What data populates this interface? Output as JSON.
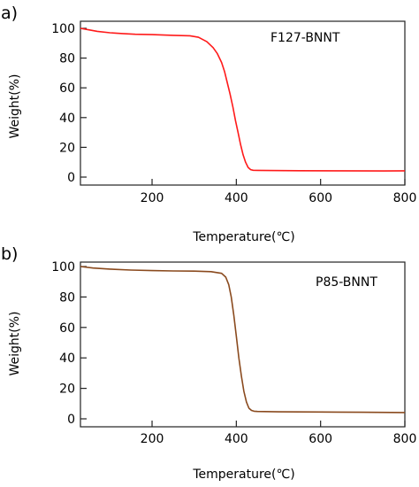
{
  "chart_data": [
    {
      "type": "line",
      "panel_label": "a)",
      "annotation": "F127-BNNT",
      "xlabel": "Temperature(℃)",
      "ylabel": "Weight(%)",
      "xlim": [
        30,
        800
      ],
      "ylim": [
        0,
        100
      ],
      "x_ticks": [
        "200",
        "400",
        "600",
        "800"
      ],
      "y_ticks": [
        "0",
        "20",
        "40",
        "60",
        "80",
        "100"
      ],
      "grid": false,
      "color": "#ff1a1a",
      "series": [
        {
          "x": [
            30,
            50,
            70,
            100,
            130,
            160,
            200,
            250,
            290,
            310,
            330,
            345,
            355,
            365,
            372,
            378,
            385,
            392,
            398,
            404,
            410,
            416,
            422,
            428,
            434,
            440,
            450,
            480,
            550,
            650,
            750,
            800
          ],
          "values": [
            100,
            99,
            98,
            97,
            96.5,
            96,
            95.8,
            95.3,
            95,
            94,
            91,
            87,
            83,
            77,
            71,
            64,
            56,
            47,
            38,
            30,
            22,
            15,
            10,
            6.5,
            5,
            4.6,
            4.5,
            4.4,
            4.3,
            4.2,
            4.1,
            4.2
          ]
        }
      ]
    },
    {
      "type": "line",
      "panel_label": "b)",
      "annotation": "P85-BNNT",
      "xlabel": "Temperature(℃)",
      "ylabel": "Weight(%)",
      "xlim": [
        30,
        800
      ],
      "ylim": [
        0,
        100
      ],
      "x_ticks": [
        "200",
        "400",
        "600",
        "800"
      ],
      "y_ticks": [
        "0",
        "20",
        "40",
        "60",
        "80",
        "100"
      ],
      "grid": false,
      "color": "#8a4a1e",
      "series": [
        {
          "x": [
            30,
            60,
            100,
            150,
            200,
            250,
            300,
            340,
            365,
            375,
            382,
            388,
            394,
            400,
            406,
            412,
            418,
            424,
            430,
            436,
            442,
            450,
            500,
            600,
            700,
            800
          ],
          "values": [
            100,
            99,
            98.3,
            97.7,
            97.3,
            97.1,
            97,
            96.6,
            95.5,
            93,
            88,
            80,
            68,
            54,
            40,
            28,
            18,
            11,
            7,
            5.5,
            5,
            4.8,
            4.6,
            4.5,
            4.3,
            4.1
          ]
        }
      ]
    }
  ]
}
